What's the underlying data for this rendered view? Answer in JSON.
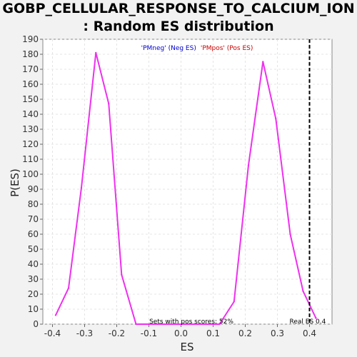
{
  "chart_data": {
    "type": "line",
    "title_line1": "GOBP_CELLULAR_RESPONSE_TO_CALCIUM_ION",
    "title_line2": ": Random ES distribution",
    "xlabel": "ES",
    "ylabel": "P(ES)",
    "xlim": [
      -0.43,
      0.47
    ],
    "ylim": [
      0,
      190
    ],
    "xticks": [
      -0.4,
      -0.3,
      -0.2,
      -0.1,
      0.0,
      0.1,
      0.2,
      0.3,
      0.4
    ],
    "xtick_labels": [
      "-0.4",
      "-0.3",
      "-0.2",
      "-0.1",
      "0.0",
      "0.1",
      "0.2",
      "0.3",
      "0.4"
    ],
    "yticks": [
      0,
      10,
      20,
      30,
      40,
      50,
      60,
      70,
      80,
      90,
      100,
      110,
      120,
      130,
      140,
      150,
      160,
      170,
      180,
      190
    ],
    "grid": true,
    "legend": {
      "placement": "top-center",
      "entries": [
        {
          "text": "'PMneg' (Neg ES)",
          "color": "#0000cc"
        },
        {
          "text": "'PMpos' (Pos ES)",
          "color": "#cc0000"
        }
      ]
    },
    "series": [
      {
        "color": "#ee30ee",
        "x": [
          -0.39,
          -0.35,
          -0.31,
          -0.265,
          -0.225,
          -0.185,
          -0.14,
          -0.1,
          0.12,
          0.165,
          0.21,
          0.255,
          0.295,
          0.34,
          0.38,
          0.42
        ],
        "y": [
          6,
          24,
          91,
          181,
          147,
          33,
          0,
          0,
          0,
          15,
          106,
          175,
          137,
          60,
          22,
          4
        ]
      }
    ],
    "vline": {
      "x": 0.4,
      "label": "Real ES 0.4",
      "style": "dashed",
      "color": "#000000"
    },
    "bottom_annotation": "Sets with pos scores: 52%"
  }
}
